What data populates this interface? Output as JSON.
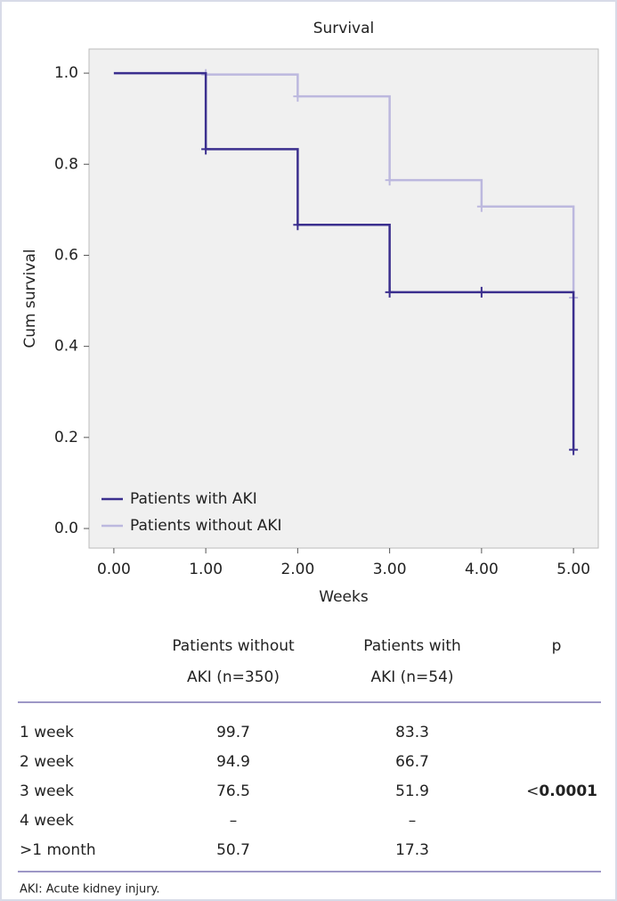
{
  "chart_data": {
    "type": "step",
    "title": "Survival",
    "x_label": "Weeks",
    "y_label": "Cum survival",
    "series": [
      {
        "name": "Patients with AKI",
        "color": "#3b2f8e",
        "x": [
          0,
          1,
          2,
          3,
          4,
          5
        ],
        "values": [
          1.0,
          0.833,
          0.667,
          0.519,
          0.519,
          0.173
        ]
      },
      {
        "name": "Patients without AKI",
        "color": "#bcb8de",
        "x": [
          0,
          1,
          2,
          3,
          4,
          5
        ],
        "values": [
          1.0,
          0.997,
          0.949,
          0.765,
          0.707,
          0.507
        ]
      }
    ],
    "xlim": [
      -0.27,
      5.27
    ],
    "ylim": [
      -0.043,
      1.053
    ],
    "xticks": [
      {
        "value": 0,
        "label": "0.00"
      },
      {
        "value": 1,
        "label": "1.00"
      },
      {
        "value": 2,
        "label": "2.00"
      },
      {
        "value": 3,
        "label": "3.00"
      },
      {
        "value": 4,
        "label": "4.00"
      },
      {
        "value": 5,
        "label": "5.00"
      }
    ],
    "yticks": [
      {
        "value": 0,
        "label": "0.0"
      },
      0.2,
      0.4,
      0.6,
      0.8,
      {
        "value": 1,
        "label": "1.0"
      }
    ],
    "legend": "lower left"
  },
  "table": {
    "header": [
      [
        "Patients without",
        "AKI (n=350)"
      ],
      [
        "Patients with",
        "AKI (n=54)"
      ],
      "p"
    ],
    "rows": [
      [
        "1 week",
        "99.7",
        "83.3"
      ],
      [
        "2 week",
        "94.9",
        "66.7"
      ],
      [
        "3 week",
        "76.5",
        "51.9"
      ],
      [
        "4 week",
        "–",
        "–"
      ],
      [
        ">1 month",
        "50.7",
        "17.3"
      ]
    ],
    "p_value": {
      "symbol": "<",
      "value": "0.0001"
    }
  },
  "footnote": "AKI: Acute kidney injury."
}
